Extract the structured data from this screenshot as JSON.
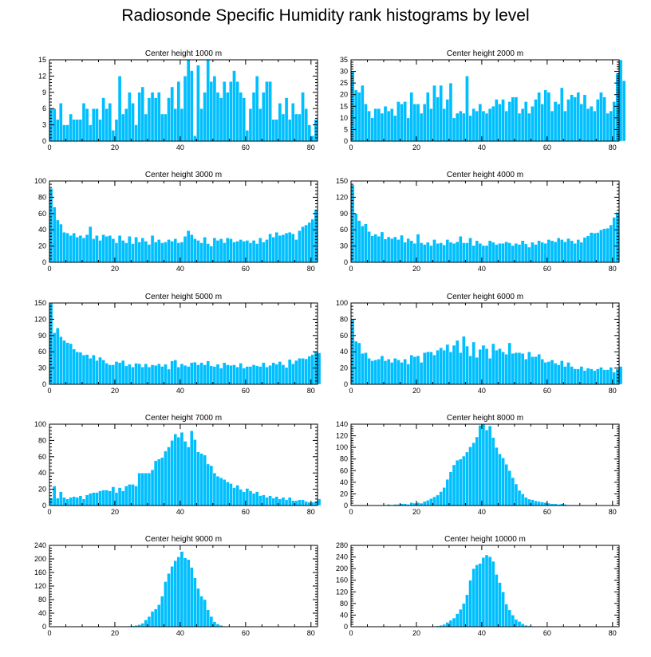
{
  "title": "Radiosonde Specific Humidity rank histograms by level",
  "colors": {
    "bar": "#00bfff",
    "bar_edge": "#ffffff",
    "axis": "#000000"
  },
  "chart_data": [
    {
      "type": "bar",
      "title": "Center height 1000 m",
      "xlim": [
        0,
        82
      ],
      "ylim": [
        0,
        15
      ],
      "xticks": [
        0,
        20,
        40,
        60,
        80
      ],
      "yticks": [
        0,
        3,
        6,
        9,
        12,
        15
      ],
      "values": [
        6,
        6,
        4,
        7,
        3,
        3,
        5,
        4,
        4,
        4,
        7,
        6,
        3,
        6,
        6,
        4,
        8,
        6,
        7,
        2,
        4,
        12,
        5,
        6,
        9,
        7,
        3,
        9,
        10,
        5,
        8,
        9,
        8,
        9,
        5,
        5,
        8,
        10,
        6,
        11,
        6,
        12,
        15,
        13,
        1,
        14,
        6,
        9,
        15,
        11,
        12,
        9,
        8,
        11,
        9,
        11,
        13,
        11,
        9,
        8,
        2,
        6,
        9,
        12,
        6,
        9,
        11,
        11,
        4,
        4,
        7,
        5,
        8,
        4,
        7,
        5,
        5,
        9,
        6,
        3,
        1,
        4
      ]
    },
    {
      "type": "bar",
      "title": "Center height 2000 m",
      "xlim": [
        0,
        82
      ],
      "ylim": [
        0,
        35
      ],
      "xticks": [
        0,
        20,
        40,
        60,
        80
      ],
      "yticks": [
        0,
        5,
        10,
        15,
        20,
        25,
        30,
        35
      ],
      "values": [
        30,
        22,
        21,
        24,
        16,
        13,
        10,
        14,
        14,
        12,
        15,
        13,
        14,
        11,
        17,
        16,
        17,
        10,
        21,
        16,
        16,
        12,
        16,
        21,
        14,
        24,
        19,
        24,
        14,
        18,
        25,
        10,
        12,
        13,
        12,
        28,
        11,
        14,
        13,
        16,
        13,
        12,
        14,
        15,
        18,
        16,
        18,
        13,
        17,
        19,
        19,
        12,
        14,
        17,
        12,
        15,
        18,
        21,
        16,
        22,
        21,
        13,
        17,
        16,
        23,
        13,
        18,
        20,
        19,
        21,
        16,
        20,
        14,
        15,
        13,
        18,
        21,
        19,
        12,
        13,
        17,
        29,
        35,
        26
      ]
    },
    {
      "type": "bar",
      "title": "Center height 3000 m",
      "xlim": [
        0,
        82
      ],
      "ylim": [
        0,
        100
      ],
      "xticks": [
        0,
        20,
        40,
        60,
        80
      ],
      "yticks": [
        0,
        20,
        40,
        60,
        80,
        100
      ],
      "values": [
        91,
        68,
        52,
        47,
        37,
        36,
        33,
        36,
        31,
        33,
        30,
        34,
        44,
        29,
        33,
        27,
        34,
        32,
        33,
        29,
        24,
        33,
        27,
        24,
        32,
        23,
        31,
        25,
        30,
        26,
        22,
        33,
        25,
        28,
        24,
        25,
        28,
        26,
        29,
        24,
        25,
        32,
        39,
        34,
        29,
        27,
        24,
        31,
        23,
        20,
        30,
        27,
        29,
        24,
        30,
        29,
        25,
        26,
        28,
        26,
        27,
        24,
        27,
        23,
        30,
        25,
        28,
        35,
        31,
        37,
        33,
        34,
        36,
        37,
        35,
        28,
        39,
        44,
        46,
        49,
        53,
        65
      ]
    },
    {
      "type": "bar",
      "title": "Center height 4000 m",
      "xlim": [
        0,
        82
      ],
      "ylim": [
        0,
        150
      ],
      "xticks": [
        0,
        20,
        40,
        60,
        80
      ],
      "yticks": [
        0,
        30,
        60,
        90,
        120,
        150
      ],
      "values": [
        143,
        90,
        77,
        67,
        71,
        57,
        49,
        52,
        48,
        56,
        43,
        47,
        44,
        47,
        42,
        50,
        37,
        44,
        40,
        35,
        52,
        36,
        33,
        37,
        31,
        42,
        35,
        36,
        32,
        42,
        37,
        35,
        38,
        48,
        36,
        36,
        45,
        31,
        40,
        35,
        31,
        31,
        40,
        37,
        33,
        35,
        35,
        38,
        36,
        31,
        35,
        33,
        40,
        34,
        28,
        37,
        33,
        40,
        37,
        35,
        42,
        40,
        38,
        45,
        42,
        38,
        44,
        40,
        35,
        42,
        37,
        46,
        49,
        55,
        54,
        55,
        60,
        62,
        63,
        69,
        83,
        92
      ]
    },
    {
      "type": "bar",
      "title": "Center height 5000 m",
      "xlim": [
        0,
        82
      ],
      "ylim": [
        0,
        150
      ],
      "xticks": [
        0,
        20,
        40,
        60,
        80
      ],
      "yticks": [
        0,
        30,
        60,
        90,
        120,
        150
      ],
      "values": [
        150,
        95,
        104,
        88,
        81,
        77,
        75,
        65,
        60,
        59,
        54,
        55,
        48,
        54,
        44,
        50,
        45,
        39,
        36,
        36,
        42,
        40,
        44,
        34,
        37,
        32,
        39,
        38,
        32,
        38,
        32,
        36,
        35,
        38,
        33,
        37,
        28,
        43,
        45,
        32,
        38,
        35,
        33,
        40,
        41,
        36,
        40,
        36,
        43,
        34,
        33,
        37,
        30,
        40,
        36,
        35,
        36,
        32,
        39,
        30,
        33,
        33,
        36,
        34,
        33,
        40,
        32,
        35,
        40,
        37,
        42,
        36,
        31,
        46,
        38,
        44,
        48,
        48,
        47,
        52,
        55,
        61,
        58
      ]
    },
    {
      "type": "bar",
      "title": "Center height 6000 m",
      "xlim": [
        0,
        82
      ],
      "ylim": [
        0,
        100
      ],
      "xticks": [
        0,
        20,
        40,
        60,
        80
      ],
      "yticks": [
        0,
        20,
        40,
        60,
        80,
        100
      ],
      "values": [
        80,
        53,
        51,
        38,
        39,
        32,
        29,
        30,
        31,
        35,
        29,
        31,
        27,
        32,
        30,
        27,
        31,
        25,
        36,
        34,
        35,
        27,
        39,
        40,
        40,
        36,
        42,
        45,
        42,
        49,
        40,
        48,
        54,
        39,
        59,
        47,
        35,
        52,
        33,
        43,
        48,
        44,
        32,
        50,
        42,
        44,
        40,
        37,
        51,
        38,
        39,
        39,
        38,
        31,
        40,
        34,
        34,
        37,
        31,
        27,
        28,
        30,
        26,
        24,
        29,
        22,
        27,
        22,
        19,
        19,
        22,
        17,
        20,
        19,
        17,
        19,
        21,
        18,
        18,
        21,
        15,
        19,
        22
      ]
    },
    {
      "type": "bar",
      "title": "Center height 7000 m",
      "xlim": [
        0,
        82
      ],
      "ylim": [
        0,
        100
      ],
      "xticks": [
        0,
        20,
        40,
        60,
        80
      ],
      "yticks": [
        0,
        20,
        40,
        60,
        80,
        100
      ],
      "values": [
        9,
        24,
        9,
        17,
        10,
        8,
        10,
        11,
        10,
        12,
        8,
        13,
        15,
        16,
        16,
        18,
        19,
        19,
        18,
        23,
        16,
        22,
        18,
        24,
        26,
        26,
        24,
        40,
        40,
        40,
        40,
        44,
        55,
        57,
        59,
        67,
        72,
        80,
        88,
        84,
        90,
        79,
        72,
        92,
        81,
        66,
        64,
        62,
        51,
        49,
        40,
        36,
        34,
        32,
        29,
        27,
        22,
        25,
        20,
        17,
        21,
        18,
        15,
        17,
        12,
        13,
        10,
        12,
        9,
        11,
        8,
        10,
        7,
        10,
        6,
        6,
        7,
        7,
        5,
        4,
        4,
        5,
        8
      ]
    },
    {
      "type": "bar",
      "title": "Center height 8000 m",
      "xlim": [
        0,
        82
      ],
      "ylim": [
        0,
        140
      ],
      "xticks": [
        0,
        20,
        40,
        60,
        80
      ],
      "yticks": [
        0,
        20,
        40,
        60,
        80,
        100,
        120,
        140
      ],
      "values": [
        0,
        0,
        0,
        0,
        0,
        0,
        0,
        0,
        0,
        0,
        0,
        2,
        1,
        2,
        2,
        3,
        3,
        2,
        5,
        4,
        5,
        4,
        7,
        9,
        12,
        15,
        18,
        24,
        31,
        45,
        58,
        70,
        78,
        80,
        85,
        92,
        101,
        108,
        118,
        138,
        143,
        130,
        137,
        117,
        100,
        89,
        82,
        71,
        60,
        48,
        37,
        26,
        20,
        14,
        11,
        10,
        8,
        7,
        6,
        5,
        4,
        3,
        3,
        2,
        3,
        2,
        1,
        1,
        1,
        1,
        0,
        0,
        0,
        0,
        0,
        0,
        0,
        0,
        0,
        0,
        0,
        0,
        0
      ]
    },
    {
      "type": "bar",
      "title": "Center height 9000 m",
      "xlim": [
        0,
        82
      ],
      "ylim": [
        0,
        240
      ],
      "xticks": [
        0,
        20,
        40,
        60,
        80
      ],
      "yticks": [
        0,
        40,
        80,
        120,
        160,
        200,
        240
      ],
      "values": [
        0,
        0,
        0,
        0,
        0,
        0,
        0,
        0,
        0,
        0,
        0,
        0,
        0,
        0,
        0,
        0,
        0,
        0,
        0,
        0,
        0,
        0,
        1,
        1,
        2,
        3,
        4,
        6,
        10,
        20,
        30,
        45,
        52,
        65,
        90,
        133,
        157,
        178,
        195,
        206,
        222,
        203,
        198,
        175,
        144,
        113,
        90,
        80,
        50,
        30,
        15,
        8,
        4,
        2,
        1,
        1,
        0,
        0,
        0,
        0,
        0,
        0,
        0,
        0,
        0,
        0,
        0,
        0,
        0,
        0,
        0,
        0,
        0,
        0,
        0,
        0,
        0,
        0,
        0,
        0,
        0,
        0,
        0
      ]
    },
    {
      "type": "bar",
      "title": "Center height 10000 m",
      "xlim": [
        0,
        82
      ],
      "ylim": [
        0,
        280
      ],
      "xticks": [
        0,
        20,
        40,
        60,
        80
      ],
      "yticks": [
        0,
        40,
        80,
        120,
        160,
        200,
        240,
        280
      ],
      "values": [
        0,
        0,
        0,
        0,
        0,
        0,
        0,
        0,
        0,
        0,
        0,
        0,
        0,
        0,
        0,
        0,
        0,
        0,
        0,
        0,
        0,
        0,
        0,
        0,
        1,
        2,
        3,
        5,
        8,
        15,
        22,
        30,
        45,
        60,
        80,
        110,
        160,
        200,
        213,
        218,
        238,
        247,
        241,
        225,
        180,
        152,
        120,
        78,
        58,
        40,
        25,
        18,
        10,
        5,
        3,
        2,
        1,
        1,
        0,
        0,
        0,
        0,
        0,
        0,
        0,
        0,
        0,
        0,
        0,
        0,
        0,
        0,
        0,
        0,
        0,
        0,
        0,
        0,
        0,
        0,
        0,
        0,
        0
      ]
    }
  ]
}
